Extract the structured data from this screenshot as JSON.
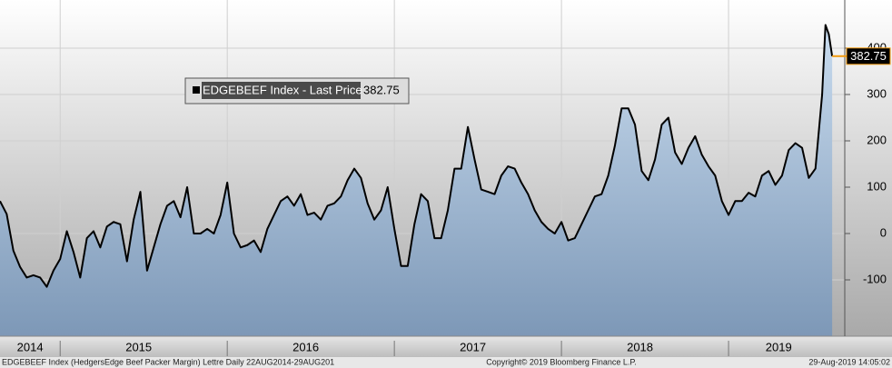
{
  "chart_data": {
    "type": "line",
    "series": [
      {
        "name": "EDGEBEEF Index - Last Price",
        "color": "#000000",
        "values": [
          70,
          42,
          -37,
          -72,
          -95,
          -90,
          -95,
          -115,
          -80,
          -55,
          5,
          -40,
          -95,
          -10,
          5,
          -30,
          15,
          25,
          20,
          -60,
          30,
          90,
          -80,
          -30,
          20,
          60,
          70,
          35,
          100,
          0,
          0,
          10,
          0,
          40,
          110,
          0,
          -30,
          -25,
          -15,
          -40,
          10,
          40,
          70,
          80,
          60,
          85,
          40,
          45,
          30,
          60,
          65,
          80,
          115,
          140,
          120,
          65,
          30,
          50,
          100,
          10,
          -70,
          -70,
          20,
          85,
          70,
          -10,
          -10,
          50,
          140,
          140,
          230,
          160,
          95,
          90,
          85,
          125,
          145,
          140,
          110,
          85,
          50,
          25,
          10,
          0,
          25,
          -15,
          -10,
          20,
          50,
          80,
          85,
          125,
          190,
          270,
          270,
          235,
          135,
          115,
          160,
          235,
          250,
          175,
          150,
          185,
          210,
          170,
          145,
          125,
          70,
          40,
          70,
          70,
          88,
          80,
          125,
          135,
          105,
          125,
          180,
          195,
          185,
          120,
          140,
          300,
          450,
          430,
          382.75
        ]
      }
    ],
    "x": [
      2014.64,
      2014.68,
      2014.72,
      2014.76,
      2014.8,
      2014.84,
      2014.88,
      2014.92,
      2014.96,
      2015.0,
      2015.04,
      2015.08,
      2015.12,
      2015.16,
      2015.2,
      2015.24,
      2015.28,
      2015.32,
      2015.36,
      2015.4,
      2015.44,
      2015.48,
      2015.52,
      2015.56,
      2015.6,
      2015.64,
      2015.68,
      2015.72,
      2015.76,
      2015.8,
      2015.84,
      2015.88,
      2015.92,
      2015.96,
      2016.0,
      2016.04,
      2016.08,
      2016.12,
      2016.16,
      2016.2,
      2016.24,
      2016.28,
      2016.32,
      2016.36,
      2016.4,
      2016.44,
      2016.48,
      2016.52,
      2016.56,
      2016.6,
      2016.64,
      2016.68,
      2016.72,
      2016.76,
      2016.8,
      2016.84,
      2016.88,
      2016.92,
      2016.96,
      2017.0,
      2017.04,
      2017.08,
      2017.12,
      2017.16,
      2017.2,
      2017.24,
      2017.28,
      2017.32,
      2017.36,
      2017.4,
      2017.44,
      2017.48,
      2017.52,
      2017.56,
      2017.6,
      2017.64,
      2017.68,
      2017.72,
      2017.76,
      2017.8,
      2017.84,
      2017.88,
      2017.92,
      2017.96,
      2018.0,
      2018.04,
      2018.08,
      2018.12,
      2018.16,
      2018.2,
      2018.24,
      2018.28,
      2018.32,
      2018.36,
      2018.4,
      2018.44,
      2018.48,
      2018.52,
      2018.56,
      2018.6,
      2018.64,
      2018.68,
      2018.72,
      2018.76,
      2018.8,
      2018.84,
      2018.88,
      2018.92,
      2018.96,
      2019.0,
      2019.04,
      2019.08,
      2019.12,
      2019.16,
      2019.2,
      2019.24,
      2019.28,
      2019.32,
      2019.36,
      2019.4,
      2019.44,
      2019.48,
      2019.52,
      2019.56,
      2019.58,
      2019.6,
      2019.62
    ],
    "xlim": [
      2014.64,
      2019.69
    ],
    "xticks": [
      {
        "value": 2014.82,
        "label": "2014"
      },
      {
        "value": 2015.47,
        "label": "2015"
      },
      {
        "value": 2016.47,
        "label": "2016"
      },
      {
        "value": 2017.47,
        "label": "2017"
      },
      {
        "value": 2018.47,
        "label": "2018"
      },
      {
        "value": 2019.3,
        "label": "2019"
      }
    ],
    "xgrid": [
      2015,
      2016,
      2017,
      2018,
      2019
    ],
    "ylim": [
      -200,
      500
    ],
    "yticks": [
      400,
      300,
      200,
      100,
      0,
      -100
    ],
    "grid": true,
    "last_price_color": "#f39c12",
    "footer": "EDGEBEEF Index (HedgersEdge Beef Packer Margin) Lettre  Daily 22AUG2014-29AUG201",
    "copyright": "Copyright© 2019 Bloomberg Finance L.P.",
    "timestamp": "29-Aug-2019 14:05:02"
  }
}
